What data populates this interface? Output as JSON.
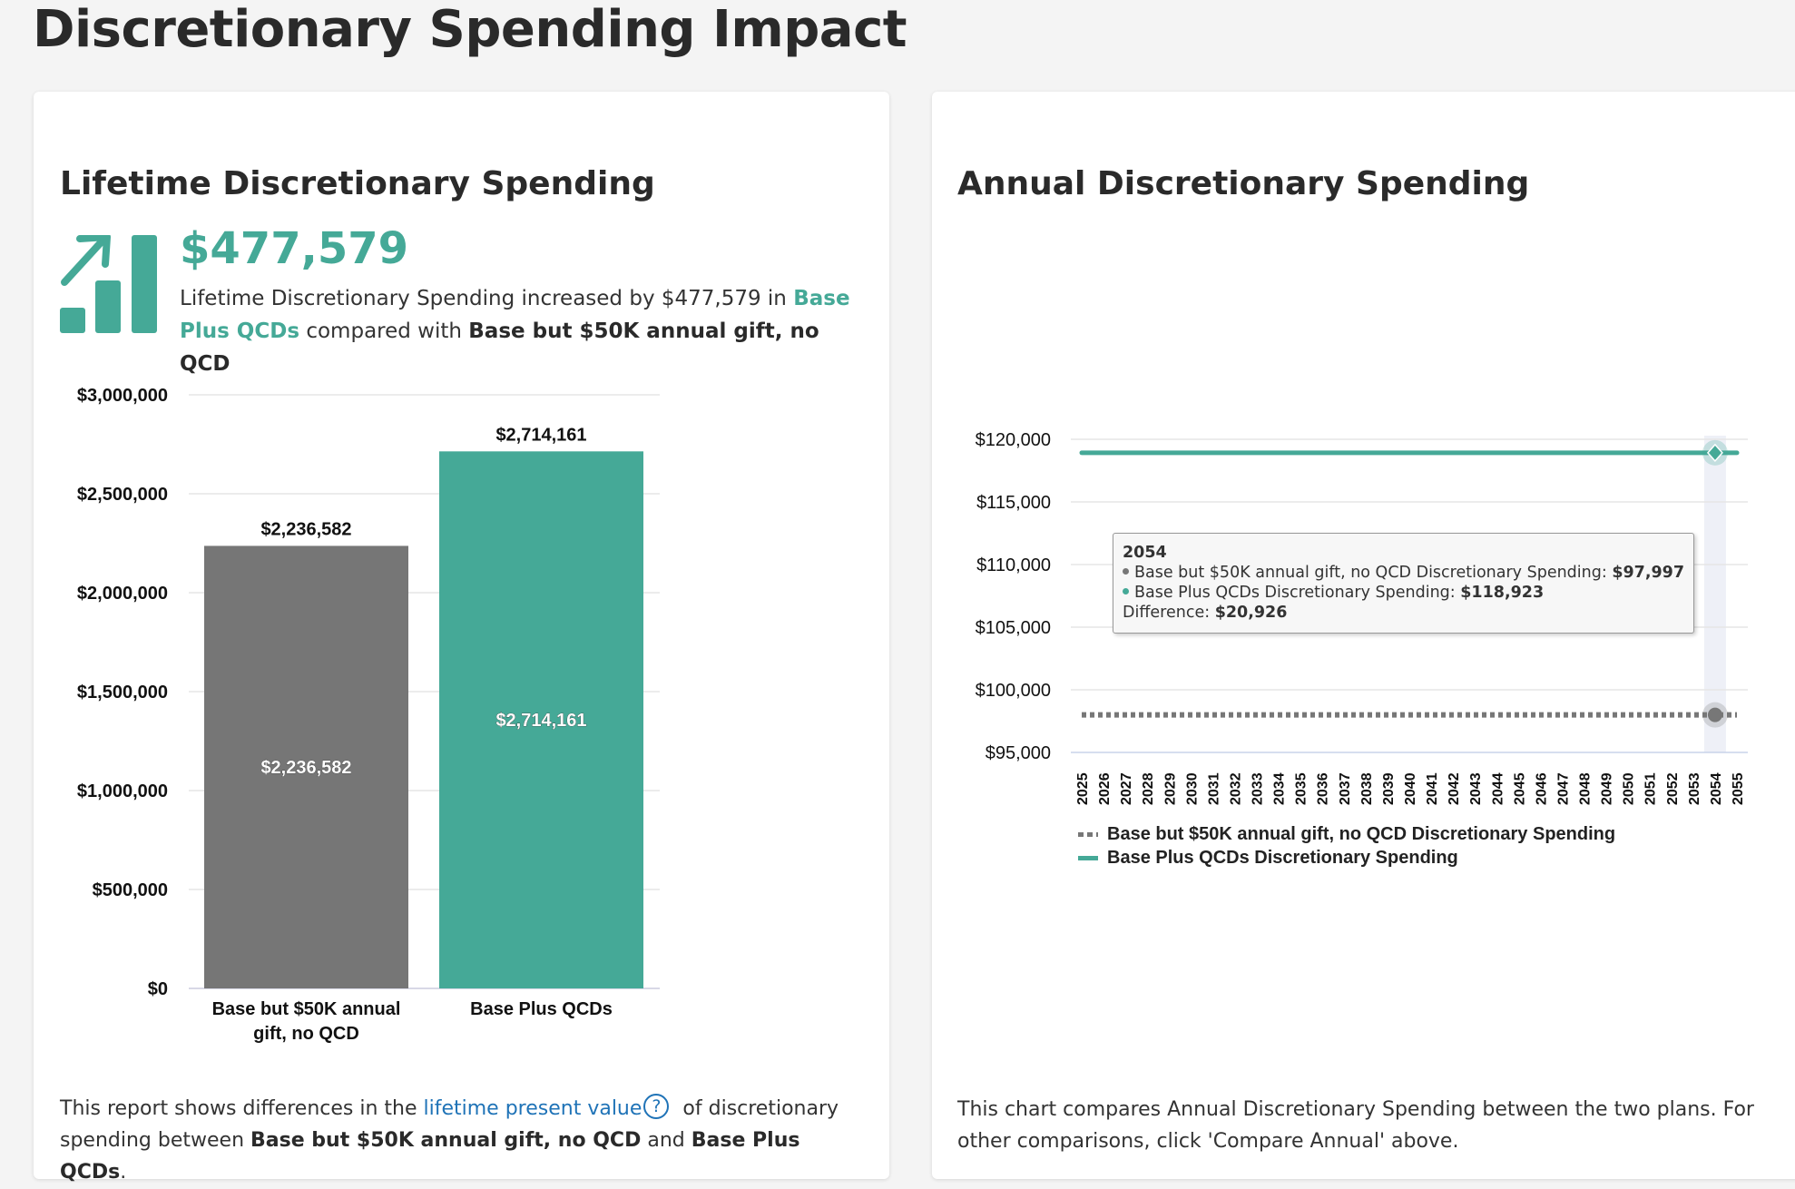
{
  "page_title": "Discretionary Spending Impact",
  "left_card": {
    "title": "Lifetime Discretionary Spending",
    "icon": "chart-increase-icon",
    "big_value": "$477,579",
    "summary": {
      "part1": "Lifetime Discretionary Spending increased by $477,579 in ",
      "plan_b": "Base Plus QCDs",
      "part2": " compared with ",
      "plan_a": "Base but $50K annual gift, no QCD"
    },
    "footer": {
      "part1": "This report shows differences in the ",
      "link": "lifetime present value",
      "help_icon": "?",
      "part2": " of discretionary spending between ",
      "plan_a": "Base but $50K annual gift, no QCD",
      "and": " and ",
      "plan_b": "Base Plus QCDs",
      "end": "."
    }
  },
  "right_card": {
    "title": "Annual Discretionary Spending",
    "tooltip": {
      "year": "2054",
      "row1_label": "Base but $50K annual gift, no QCD Discretionary Spending: ",
      "row1_value": "$97,997",
      "row2_label": "Base Plus QCDs Discretionary Spending: ",
      "row2_value": "$118,923",
      "diff_label": "Difference: ",
      "diff_value": "$20,926"
    },
    "footer": "This chart compares Annual Discretionary Spending between the two plans. For other comparisons, click 'Compare Annual' above."
  },
  "colors": {
    "teal": "#45a997",
    "gray": "#767676"
  },
  "chart_data": [
    {
      "type": "bar",
      "title": "Lifetime Discretionary Spending",
      "categories": [
        "Base but $50K annual gift, no QCD",
        "Base Plus QCDs"
      ],
      "category_lines": [
        [
          "Base but $50K annual",
          "gift, no QCD"
        ],
        [
          "Base Plus QCDs"
        ]
      ],
      "values": [
        2236582,
        2714161
      ],
      "value_labels": [
        "$2,236,582",
        "$2,714,161"
      ],
      "ylim": [
        0,
        3000000
      ],
      "yticks": [
        0,
        500000,
        1000000,
        1500000,
        2000000,
        2500000,
        3000000
      ],
      "ytick_labels": [
        "$0",
        "$500,000",
        "$1,000,000",
        "$1,500,000",
        "$2,000,000",
        "$2,500,000",
        "$3,000,000"
      ],
      "grid": true
    },
    {
      "type": "line",
      "title": "Annual Discretionary Spending",
      "x": [
        2025,
        2026,
        2027,
        2028,
        2029,
        2030,
        2031,
        2032,
        2033,
        2034,
        2035,
        2036,
        2037,
        2038,
        2039,
        2040,
        2041,
        2042,
        2043,
        2044,
        2045,
        2046,
        2047,
        2048,
        2049,
        2050,
        2051,
        2052,
        2053,
        2054,
        2055
      ],
      "series": [
        {
          "name": "Base but $50K annual gift, no QCD Discretionary Spending",
          "style": "dotted",
          "value": 97997
        },
        {
          "name": "Base Plus QCDs Discretionary Spending",
          "style": "solid",
          "value": 118923
        }
      ],
      "ylim": [
        95000,
        120000
      ],
      "yticks": [
        95000,
        100000,
        105000,
        110000,
        115000,
        120000
      ],
      "ytick_labels": [
        "$95,000",
        "$100,000",
        "$105,000",
        "$110,000",
        "$115,000",
        "$120,000"
      ],
      "highlight_x": 2054,
      "legend": "bottom-left",
      "grid": true
    }
  ]
}
